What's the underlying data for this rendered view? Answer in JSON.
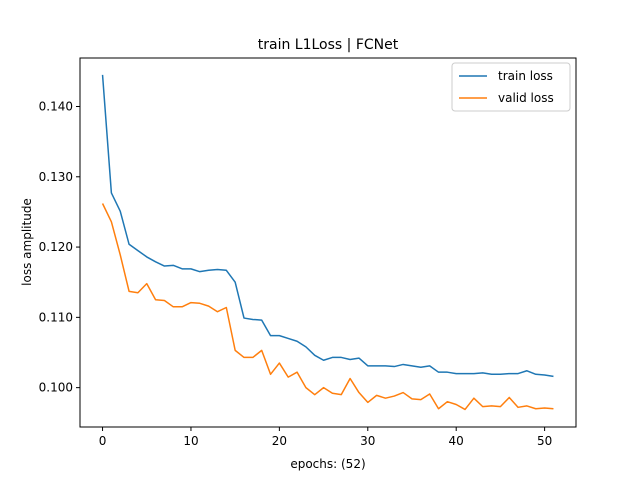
{
  "chart_data": {
    "type": "line",
    "title": "train L1Loss | FCNet",
    "xlabel": "epochs: (52)",
    "ylabel": "loss amplitude",
    "xlim": [
      -2.55,
      53.55
    ],
    "ylim": [
      0.0944,
      0.1469
    ],
    "xticks": [
      0,
      10,
      20,
      30,
      40,
      50
    ],
    "yticks": [
      0.1,
      0.11,
      0.12,
      0.13,
      0.14
    ],
    "ytick_labels": [
      "0.100",
      "0.110",
      "0.120",
      "0.130",
      "0.140"
    ],
    "xtick_labels": [
      "0",
      "10",
      "20",
      "30",
      "40",
      "50"
    ],
    "grid": false,
    "legend": "top-right",
    "x": [
      0,
      1,
      2,
      3,
      4,
      5,
      6,
      7,
      8,
      9,
      10,
      11,
      12,
      13,
      14,
      15,
      16,
      17,
      18,
      19,
      20,
      21,
      22,
      23,
      24,
      25,
      26,
      27,
      28,
      29,
      30,
      31,
      32,
      33,
      34,
      35,
      36,
      37,
      38,
      39,
      40,
      41,
      42,
      43,
      44,
      45,
      46,
      47,
      48,
      49,
      50,
      51
    ],
    "series": [
      {
        "name": "train loss",
        "color": "#1f77b4",
        "values": [
          0.1445,
          0.1277,
          0.1251,
          0.1204,
          0.1195,
          0.1186,
          0.1179,
          0.1173,
          0.1174,
          0.1169,
          0.1169,
          0.1165,
          0.1167,
          0.1168,
          0.1167,
          0.115,
          0.1099,
          0.1097,
          0.1096,
          0.1074,
          0.1074,
          0.107,
          0.1066,
          0.1058,
          0.1046,
          0.1039,
          0.1043,
          0.1043,
          0.104,
          0.1042,
          0.1031,
          0.1031,
          0.1031,
          0.103,
          0.1033,
          0.1031,
          0.1029,
          0.1031,
          0.1022,
          0.1022,
          0.102,
          0.102,
          0.102,
          0.1021,
          0.1019,
          0.1019,
          0.102,
          0.102,
          0.1024,
          0.1019,
          0.1018,
          0.1016
        ]
      },
      {
        "name": "valid loss",
        "color": "#ff7f0e",
        "values": [
          0.1262,
          0.1236,
          0.1189,
          0.1137,
          0.1135,
          0.1148,
          0.1125,
          0.1124,
          0.1115,
          0.1115,
          0.1121,
          0.112,
          0.1116,
          0.1108,
          0.1114,
          0.1053,
          0.1043,
          0.1043,
          0.1053,
          0.1019,
          0.1035,
          0.1015,
          0.1022,
          0.1,
          0.099,
          0.1,
          0.0992,
          0.099,
          0.1013,
          0.0993,
          0.0979,
          0.0989,
          0.0985,
          0.0988,
          0.0993,
          0.0984,
          0.0983,
          0.0991,
          0.097,
          0.098,
          0.0976,
          0.0969,
          0.0985,
          0.0973,
          0.0974,
          0.0973,
          0.0986,
          0.0972,
          0.0974,
          0.097,
          0.0971,
          0.097
        ]
      }
    ]
  }
}
